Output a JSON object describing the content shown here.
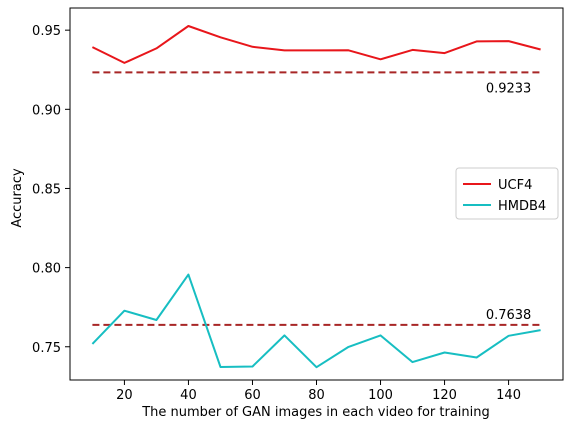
{
  "chart_data": {
    "type": "line",
    "title": "",
    "xlabel": "The number of GAN images in each video for training",
    "ylabel": "Accuracy",
    "xlim": [
      3,
      157
    ],
    "ylim": [
      0.729,
      0.964
    ],
    "x_ticks": [
      20,
      40,
      60,
      80,
      100,
      120,
      140
    ],
    "y_ticks": [
      0.75,
      0.8,
      0.85,
      0.9,
      0.95
    ],
    "x_tick_labels": [
      "20",
      "40",
      "60",
      "80",
      "100",
      "120",
      "140"
    ],
    "y_tick_labels": [
      "0.75",
      "0.80",
      "0.85",
      "0.90",
      "0.95"
    ],
    "grid": false,
    "legend_position": "center-right",
    "x": [
      10,
      20,
      30,
      40,
      50,
      60,
      70,
      80,
      90,
      100,
      110,
      120,
      130,
      140,
      150
    ],
    "series": [
      {
        "name": "UCF4",
        "color": "#e8161b",
        "values": [
          0.9393,
          0.9293,
          0.9385,
          0.9526,
          0.9455,
          0.9395,
          0.9372,
          0.9372,
          0.9373,
          0.9316,
          0.9375,
          0.9355,
          0.9429,
          0.9431,
          0.9378
        ]
      },
      {
        "name": "HMDB4",
        "color": "#17bec2",
        "values": [
          0.7518,
          0.7728,
          0.7669,
          0.7956,
          0.7372,
          0.7375,
          0.7572,
          0.7371,
          0.7499,
          0.7572,
          0.7403,
          0.7464,
          0.7432,
          0.7569,
          0.7605
        ]
      }
    ],
    "reference_lines": [
      {
        "value": 0.9233,
        "label": "0.9233",
        "color": "#a82626",
        "style": "dashed"
      },
      {
        "value": 0.7638,
        "label": "0.7638",
        "color": "#a82626",
        "style": "dashed"
      }
    ]
  }
}
